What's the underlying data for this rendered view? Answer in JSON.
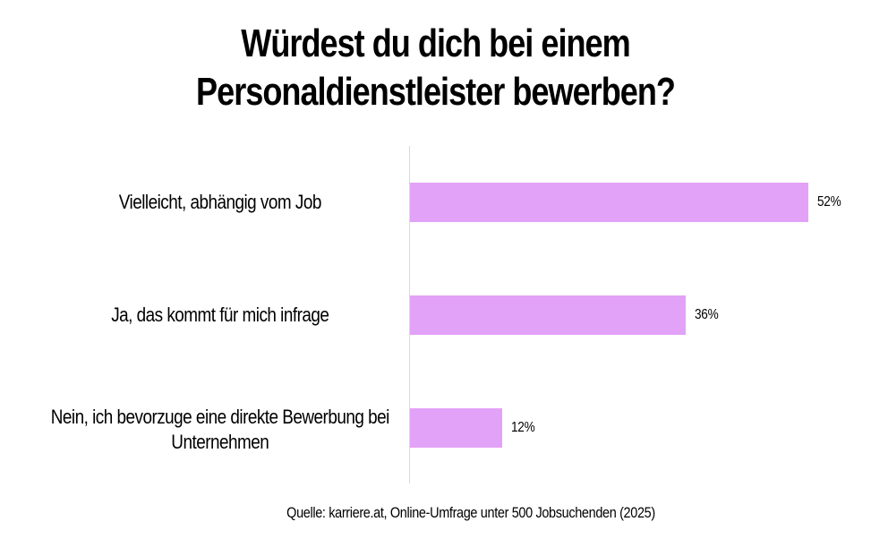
{
  "chart_data": {
    "type": "bar",
    "orientation": "horizontal",
    "title": "Würdest du dich bei einem Personaldienstleister bewerben?",
    "title_lines": [
      "Würdest du dich bei einem",
      "Personaldienstleister bewerben?"
    ],
    "categories": [
      "Vielleicht, abhängig vom Job",
      "Ja, das kommt für mich infrage",
      "Nein, ich bevorzuge eine direkte Bewerbung bei Unternehmen"
    ],
    "values": [
      52,
      36,
      12
    ],
    "value_labels": [
      "52%",
      "36%",
      "12%"
    ],
    "unit": "%",
    "xlabel": "",
    "ylabel": "",
    "xlim": [
      0,
      60
    ],
    "grid": false,
    "legend": null,
    "bar_color": "#E2A2F7",
    "source": "Quelle: karriere.at, Online-Umfrage unter 500 Jobsuchenden (2025)"
  },
  "labels": [
    {
      "lines": [
        "Vielleicht, abhängig vom Job"
      ]
    },
    {
      "lines": [
        "Ja, das kommt für mich infrage"
      ]
    },
    {
      "lines": [
        "Nein, ich bevorzuge eine direkte Bewerbung bei",
        "Unternehmen"
      ]
    }
  ]
}
